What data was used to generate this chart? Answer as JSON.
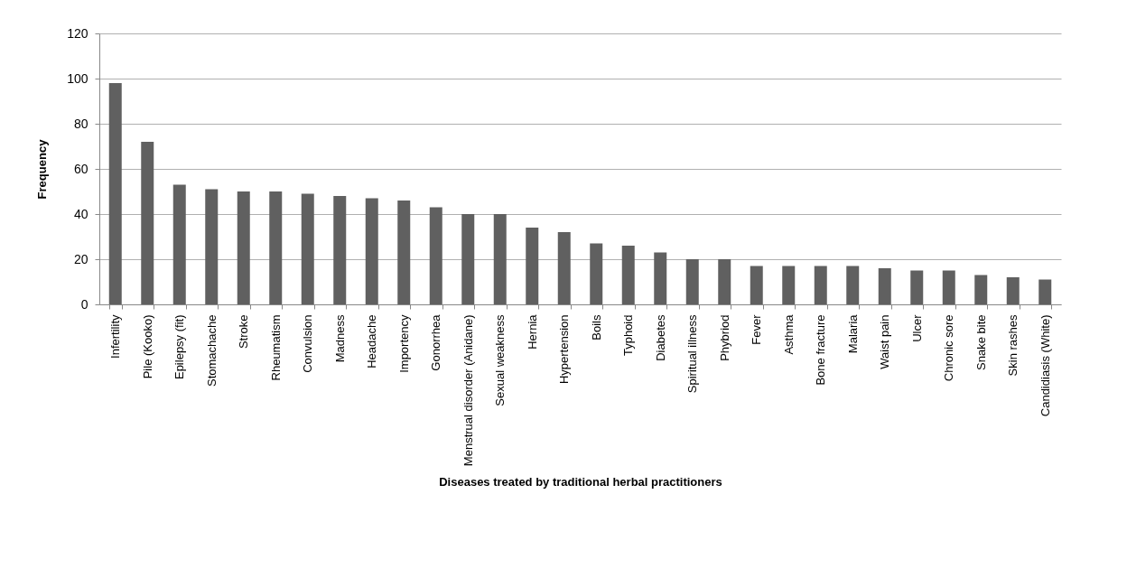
{
  "chart_data": {
    "type": "bar",
    "xlabel": "Diseases treated by traditional herbal practitioners",
    "ylabel": "Frequency",
    "categories": [
      "Infertility",
      "Pile (Kooko)",
      "Epilepsy (fit)",
      "Stomachache",
      "Stroke",
      "Rheumatism",
      "Convulsion",
      "Madness",
      "Headache",
      "Importency",
      "Gonorrhea",
      "Menstrual disorder (Anidane)",
      "Sexual weakness",
      "Hernia",
      "Hypertension",
      "Boils",
      "Typhoid",
      "Diabetes",
      "Spiritual illness",
      "Phybriod",
      "Fever",
      "Asthma",
      "Bone fracture",
      "Malaria",
      "Waist pain",
      "Ulcer",
      "Chronic sore",
      "Snake bite",
      "Skin rashes",
      "Candidiasis (White)"
    ],
    "values": [
      98,
      72,
      53,
      51,
      50,
      50,
      49,
      48,
      47,
      46,
      43,
      40,
      40,
      34,
      32,
      27,
      26,
      23,
      20,
      20,
      17,
      17,
      17,
      17,
      16,
      15,
      15,
      13,
      12,
      11
    ],
    "color": "#606060",
    "ylim": [
      0,
      120
    ],
    "yticks": [
      0,
      20,
      40,
      60,
      80,
      100,
      120
    ],
    "grid": "y"
  }
}
